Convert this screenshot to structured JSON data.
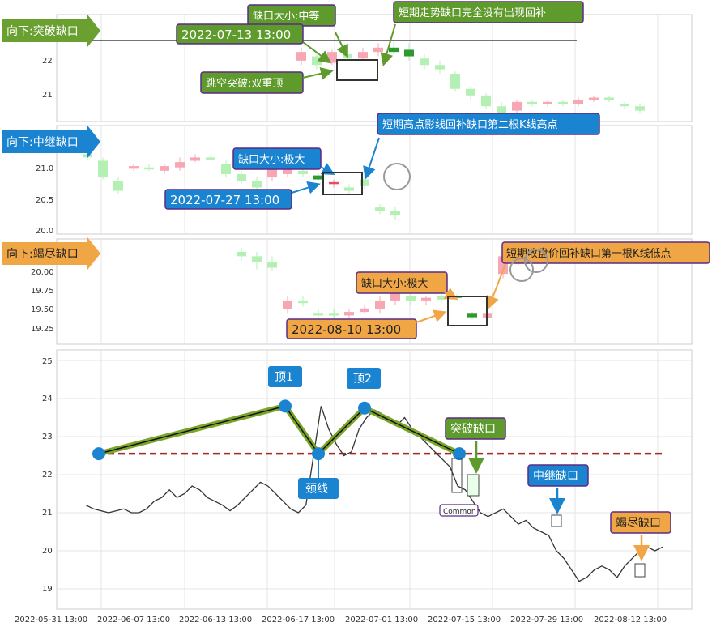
{
  "colors": {
    "up": "#f7a7b4",
    "down": "#b4f0b4",
    "up_wick": "#e05060",
    "down_wick": "#2c9a2c",
    "line": "#333333",
    "pattern": "#7aa52a",
    "neckline": "#a52a2a",
    "blue_badge": "#1a84d0",
    "green_badge": "#5e9a2c",
    "orange_badge": "#f1a645",
    "frame": "#5a2a86"
  },
  "panels": [
    {
      "id": "p1",
      "arrow_label": "向下:突破缺口",
      "arrow_color": "#6aa030",
      "y_ticks": [
        "22",
        "21"
      ],
      "hline_value": 22.55,
      "candles": [
        [
          21.9,
          22.1,
          22.2,
          21.8
        ],
        [
          22.0,
          21.8,
          22.1,
          21.7
        ],
        [
          21.85,
          22.1,
          22.15,
          21.8
        ],
        [
          22.05,
          21.95,
          22.2,
          21.9
        ],
        [
          21.95,
          22.1,
          22.2,
          21.9
        ],
        [
          22.1,
          22.2,
          22.3,
          22.0
        ],
        [
          22.2,
          22.1,
          22.35,
          22.05
        ],
        [
          22.15,
          22.0,
          22.3,
          21.9
        ],
        [
          21.95,
          21.8,
          22.05,
          21.7
        ],
        [
          21.8,
          21.7,
          21.9,
          21.6
        ],
        [
          21.6,
          21.25,
          21.65,
          21.2
        ],
        [
          21.25,
          21.1,
          21.3,
          21.0
        ],
        [
          21.1,
          20.85,
          21.15,
          20.8
        ],
        [
          20.85,
          20.7,
          20.95,
          20.6
        ],
        [
          20.75,
          20.95,
          21.0,
          20.7
        ],
        [
          20.95,
          20.9,
          21.0,
          20.85
        ],
        [
          20.9,
          20.95,
          21.0,
          20.85
        ],
        [
          20.95,
          20.9,
          21.0,
          20.85
        ],
        [
          20.9,
          21.0,
          21.05,
          20.85
        ],
        [
          21.0,
          21.05,
          21.1,
          20.95
        ],
        [
          21.05,
          21.0,
          21.1,
          20.95
        ],
        [
          20.9,
          20.85,
          20.95,
          20.8
        ],
        [
          20.85,
          20.75,
          20.9,
          20.7
        ]
      ],
      "gap_box_index": [
        6,
        7
      ],
      "labels": [
        {
          "text": "缺口大小:中等",
          "color": "#5e9a2c"
        },
        {
          "text": "短期走势缺口完全没有出现回补",
          "color": "#5e9a2c"
        },
        {
          "text": "2022-07-13 13:00",
          "color": "#5e9a2c"
        },
        {
          "text": "跳空突破:双重顶",
          "color": "#5e9a2c"
        }
      ]
    },
    {
      "id": "p2",
      "arrow_label": "向下:中继缺口",
      "arrow_color": "#1a84d0",
      "y_ticks": [
        "21.0",
        "20.5",
        "20.0"
      ],
      "candles": [
        [
          21.1,
          21.05,
          21.15,
          21.0
        ],
        [
          21.0,
          20.75,
          21.05,
          20.72
        ],
        [
          20.7,
          20.55,
          20.75,
          20.5
        ],
        [
          20.88,
          20.92,
          20.95,
          20.85
        ],
        [
          20.9,
          20.87,
          20.95,
          20.85
        ],
        [
          20.85,
          20.92,
          20.95,
          20.8
        ],
        [
          20.9,
          20.98,
          21.05,
          20.85
        ],
        [
          21.0,
          21.05,
          21.1,
          20.98
        ],
        [
          21.05,
          21.02,
          21.08,
          21.0
        ],
        [
          20.95,
          20.8,
          21.0,
          20.75
        ],
        [
          20.8,
          20.7,
          20.85,
          20.65
        ],
        [
          20.7,
          20.6,
          20.75,
          20.55
        ],
        [
          20.75,
          20.9,
          20.95,
          20.7
        ],
        [
          20.8,
          20.9,
          20.95,
          20.75
        ],
        [
          20.85,
          20.8,
          20.9,
          20.75
        ],
        [
          20.78,
          20.72,
          20.82,
          20.7
        ],
        [
          20.65,
          20.68,
          20.72,
          20.6
        ],
        [
          20.6,
          20.55,
          20.65,
          20.5
        ],
        [
          20.72,
          20.62,
          20.8,
          20.58
        ],
        [
          20.3,
          20.25,
          20.35,
          20.2
        ],
        [
          20.25,
          20.18,
          20.3,
          20.12
        ]
      ],
      "gap_box_index": [
        15,
        16
      ],
      "labels": [
        {
          "text": "缺口大小:极大",
          "color": "#1a84d0"
        },
        {
          "text": "短期高点影线回补缺口第二根K线高点",
          "color": "#1a84d0"
        },
        {
          "text": "2022-07-27 13:00",
          "color": "#1a84d0"
        }
      ]
    },
    {
      "id": "p3",
      "arrow_label": "向下:竭尽缺口",
      "arrow_color": "#f1a645",
      "y_ticks": [
        "20.00",
        "19.75",
        "19.50",
        "19.25"
      ],
      "candles": [
        [
          20.1,
          20.05,
          20.15,
          20.0
        ],
        [
          20.05,
          19.98,
          20.1,
          19.9
        ],
        [
          19.98,
          19.92,
          20.05,
          19.88
        ],
        [
          19.45,
          19.55,
          19.6,
          19.4
        ],
        [
          19.55,
          19.52,
          19.6,
          19.48
        ],
        [
          19.4,
          19.38,
          19.45,
          19.35
        ],
        [
          19.4,
          19.38,
          19.45,
          19.35
        ],
        [
          19.38,
          19.42,
          19.45,
          19.35
        ],
        [
          19.42,
          19.46,
          19.5,
          19.4
        ],
        [
          19.45,
          19.55,
          19.6,
          19.4
        ],
        [
          19.55,
          19.68,
          19.72,
          19.5
        ],
        [
          19.6,
          19.55,
          19.62,
          19.5
        ],
        [
          19.55,
          19.58,
          19.6,
          19.5
        ],
        [
          19.6,
          19.56,
          19.62,
          19.52
        ],
        [
          19.6,
          19.58,
          19.62,
          19.55
        ],
        [
          19.4,
          19.36,
          19.42,
          19.33
        ],
        [
          19.35,
          19.4,
          19.45,
          19.32
        ],
        [
          19.85,
          20.05,
          20.1,
          19.8
        ],
        [
          20.0,
          20.1,
          20.15,
          19.95
        ]
      ],
      "gap_box_index": [
        14,
        15
      ],
      "labels": [
        {
          "text": "缺口大小:极大",
          "color": "#f1a645"
        },
        {
          "text": "短期收盘价回补缺口第一根K线低点",
          "color": "#f1a645"
        },
        {
          "text": "2022-08-10 13:00",
          "color": "#f1a645"
        }
      ]
    }
  ],
  "main_chart": {
    "y_ticks": [
      "25",
      "24",
      "23",
      "22",
      "21",
      "20",
      "19"
    ],
    "neckline_value": 22.55,
    "pattern_points": [
      [
        0,
        22.55
      ],
      [
        11,
        23.8
      ],
      [
        14,
        22.55
      ],
      [
        17,
        23.75
      ],
      [
        22,
        22.55
      ]
    ],
    "price_line": [
      21.2,
      21.1,
      21.05,
      21.0,
      21.05,
      21.1,
      21.0,
      21.0,
      21.1,
      21.3,
      21.4,
      21.6,
      21.4,
      21.5,
      21.7,
      21.6,
      21.4,
      21.3,
      21.2,
      21.05,
      21.2,
      21.4,
      21.6,
      21.8,
      21.7,
      21.5,
      21.3,
      21.1,
      21.0,
      21.2,
      22.5,
      23.8,
      23.2,
      22.8,
      22.5,
      22.6,
      23.2,
      23.5,
      23.7,
      23.6,
      23.4,
      23.3,
      23.5,
      23.2,
      23.0,
      22.8,
      22.6,
      22.4,
      22.2,
      21.7,
      21.6,
      21.3,
      21.0,
      20.9,
      21.0,
      21.1,
      20.9,
      20.7,
      20.8,
      20.6,
      20.5,
      20.4,
      20.0,
      19.8,
      19.5,
      19.2,
      19.3,
      19.5,
      19.6,
      19.5,
      19.3,
      19.6,
      19.8,
      20.0,
      20.1,
      20.0,
      20.1
    ],
    "labels": {
      "top1": "顶1",
      "top2": "顶2",
      "neckline": "颈线",
      "breakaway": "突破缺口",
      "continuation": "中继缺口",
      "exhaustion": "竭尽缺口",
      "common": "Common"
    },
    "x_ticks": [
      "2022-05-31 13:00",
      "2022-06-07 13:00",
      "2022-06-13 13:00",
      "2022-06-17 13:00",
      "2022-07-01 13:00",
      "2022-07-15 13:00",
      "2022-07-29 13:00",
      "2022-08-12 13:00"
    ]
  },
  "chart_data": {
    "type": "line",
    "series": [
      {
        "values": [
          21.2,
          21.1,
          21.05,
          21.0,
          21.05,
          21.1,
          21.0,
          21.0,
          21.1,
          21.3,
          21.4,
          21.6,
          21.4,
          21.5,
          21.7,
          21.6,
          21.4,
          21.3,
          21.2,
          21.05,
          21.2,
          21.4,
          21.6,
          21.8,
          21.7,
          21.5,
          21.3,
          21.1,
          21.0,
          21.2,
          22.5,
          23.8,
          23.2,
          22.8,
          22.5,
          22.6,
          23.2,
          23.5,
          23.7,
          23.6,
          23.4,
          23.3,
          23.5,
          23.2,
          23.0,
          22.8,
          22.6,
          22.4,
          22.2,
          21.7,
          21.6,
          21.3,
          21.0,
          20.9,
          21.0,
          21.1,
          20.9,
          20.7,
          20.8,
          20.6,
          20.5,
          20.4,
          20.0,
          19.8,
          19.5,
          19.2,
          19.3,
          19.5,
          19.6,
          19.5,
          19.3,
          19.6,
          19.8,
          20.0,
          20.1,
          20.0,
          20.1
        ]
      }
    ],
    "ylim": [
      18.6,
      25.3
    ],
    "x_ticks": [
      "2022-05-31 13:00",
      "2022-06-07 13:00",
      "2022-06-13 13:00",
      "2022-06-17 13:00",
      "2022-07-01 13:00",
      "2022-07-15 13:00",
      "2022-07-29 13:00",
      "2022-08-12 13:00"
    ],
    "y_ticks": [
      25,
      24,
      23,
      22,
      21,
      20,
      19
    ],
    "grid": true
  }
}
